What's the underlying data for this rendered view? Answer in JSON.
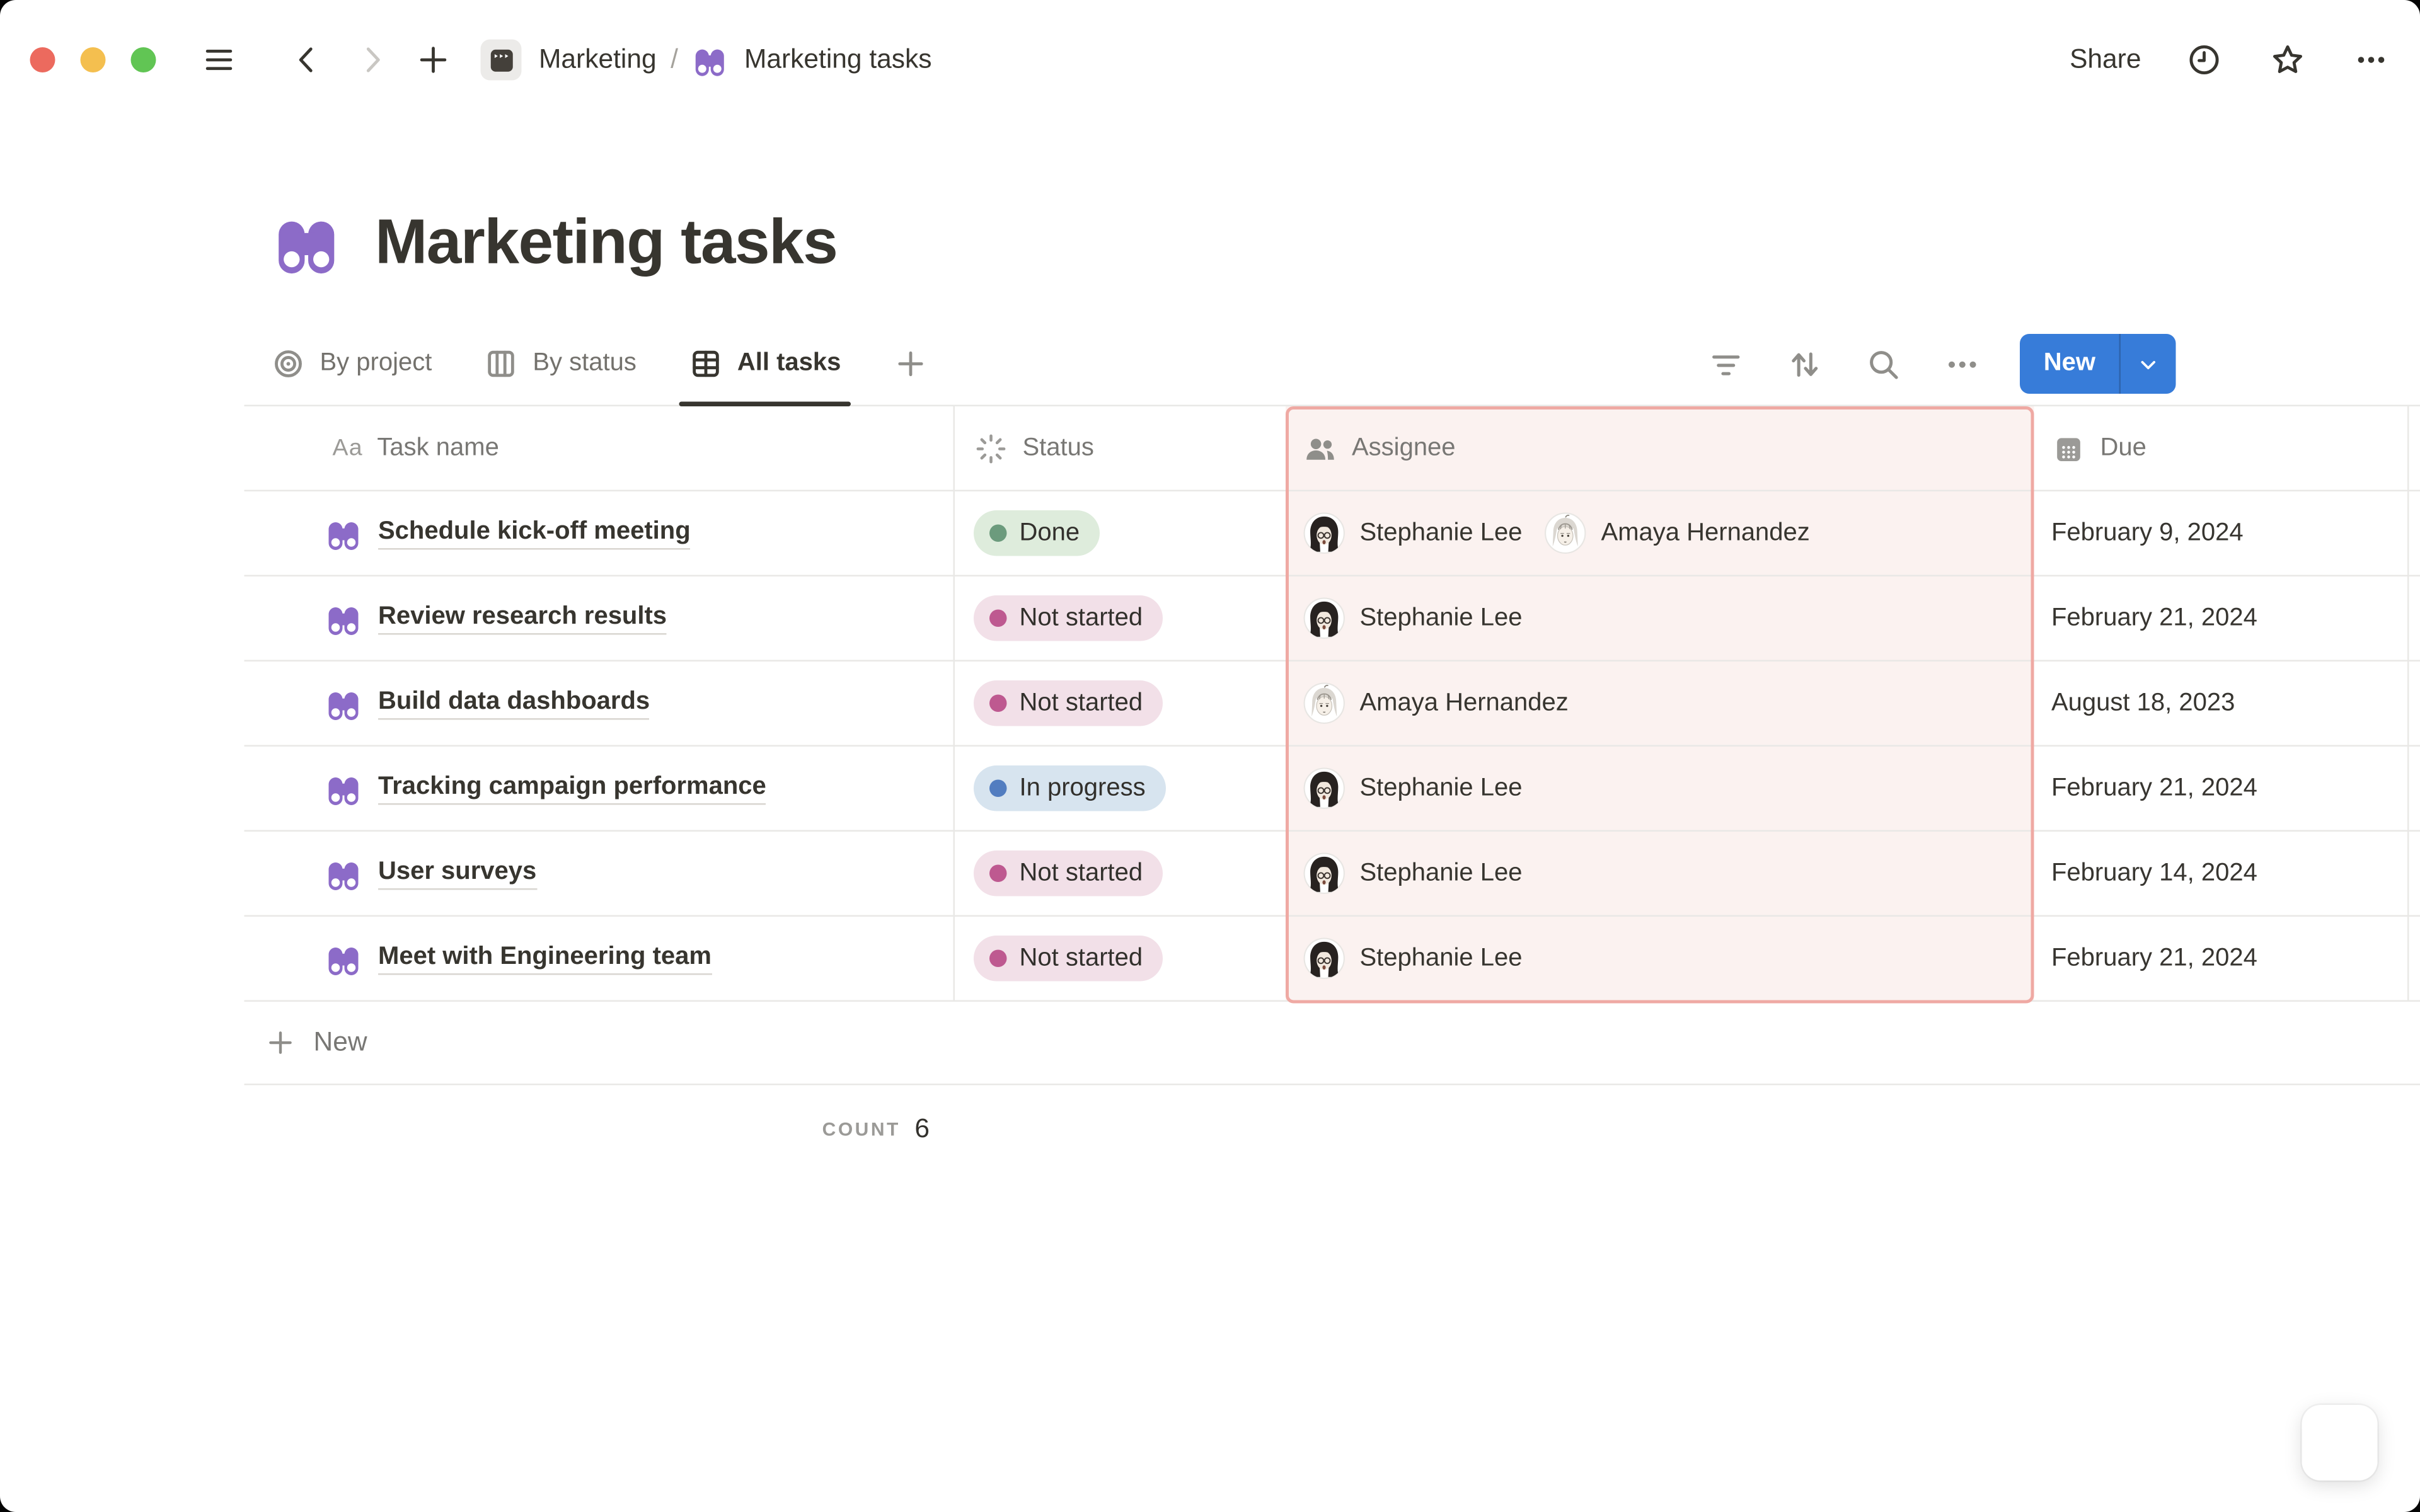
{
  "topbar": {
    "breadcrumb_project": "Marketing",
    "breadcrumb_sep": "/",
    "breadcrumb_page": "Marketing tasks",
    "share_label": "Share"
  },
  "page": {
    "title": "Marketing tasks",
    "views": [
      {
        "label": "By project",
        "icon": "target-icon"
      },
      {
        "label": "By status",
        "icon": "board-columns-icon"
      },
      {
        "label": "All tasks",
        "icon": "table-icon",
        "active": true
      }
    ]
  },
  "toolbar": {
    "new_label": "New"
  },
  "table": {
    "columns": [
      {
        "label": "Task name",
        "icon": "text-Aa-icon"
      },
      {
        "label": "Status",
        "icon": "spinner-icon"
      },
      {
        "label": "Assignee",
        "icon": "people-icon",
        "highlighted": true
      },
      {
        "label": "Due",
        "icon": "calendar-icon"
      }
    ],
    "rows": [
      {
        "task": "Schedule kick-off meeting",
        "status": "Done",
        "status_color": "green",
        "assignees": [
          "Stephanie Lee",
          "Amaya Hernandez"
        ],
        "due": "February 9, 2024"
      },
      {
        "task": "Review research results",
        "status": "Not started",
        "status_color": "pink",
        "assignees": [
          "Stephanie Lee"
        ],
        "due": "February 21, 2024"
      },
      {
        "task": "Build data dashboards",
        "status": "Not started",
        "status_color": "pink",
        "assignees": [
          "Amaya Hernandez"
        ],
        "due": "August 18, 2023"
      },
      {
        "task": "Tracking campaign performance",
        "status": "In progress",
        "status_color": "blue",
        "assignees": [
          "Stephanie Lee"
        ],
        "due": "February 21, 2024"
      },
      {
        "task": "User surveys",
        "status": "Not started",
        "status_color": "pink",
        "assignees": [
          "Stephanie Lee"
        ],
        "due": "February 14, 2024"
      },
      {
        "task": "Meet with Engineering team",
        "status": "Not started",
        "status_color": "pink",
        "assignees": [
          "Stephanie Lee"
        ],
        "due": "February 21, 2024"
      }
    ],
    "new_row_label": "New",
    "footer": {
      "count_label": "COUNT",
      "count_value": "6"
    }
  },
  "avatars": {
    "Stephanie Lee": "stephanie",
    "Amaya Hernandez": "amaya"
  },
  "colors": {
    "accent_blue": "#377CD9",
    "icon_purple": "#8C6BC8",
    "highlight_bg": "#FBF2F0",
    "highlight_border": "#EFA9A3",
    "traffic": [
      "#EC6A5E",
      "#F4BF4F",
      "#61C554"
    ],
    "status": {
      "green": {
        "bg": "#DEECDC",
        "dot": "#6C9B7D"
      },
      "pink": {
        "bg": "#F2E0E8",
        "dot": "#BE5990"
      },
      "blue": {
        "bg": "#D7E4EF",
        "dot": "#527DC0"
      }
    }
  }
}
